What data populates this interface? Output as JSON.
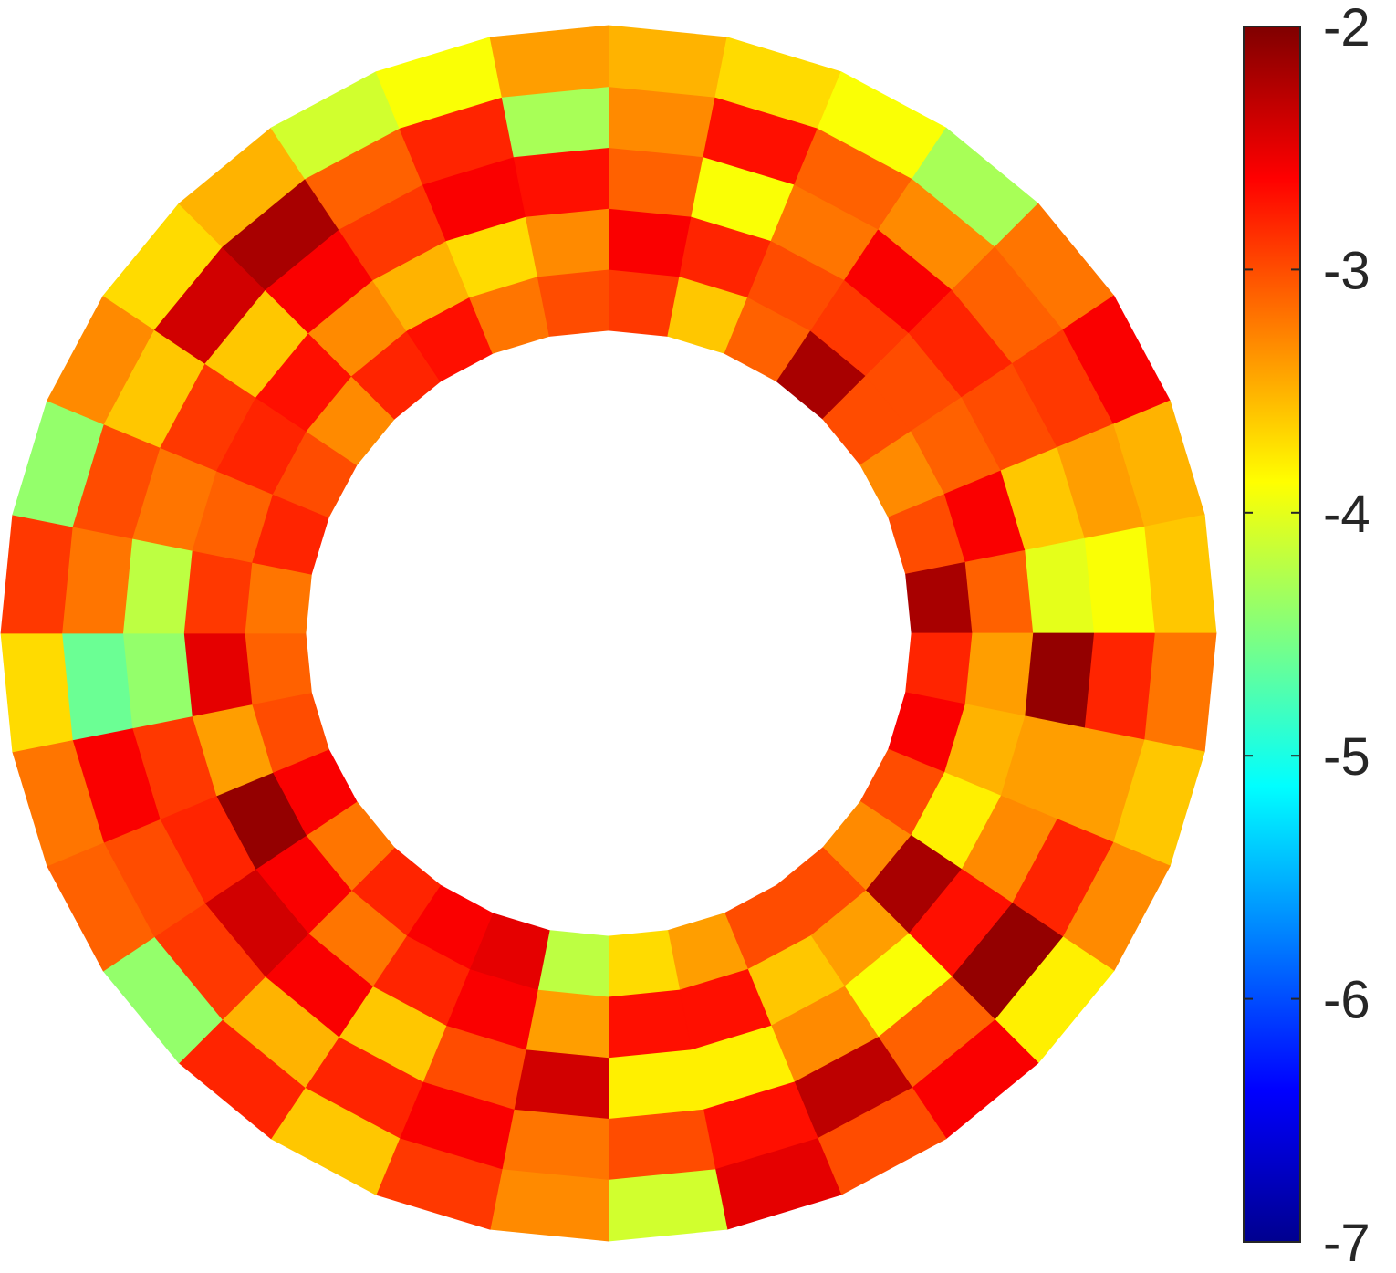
{
  "chart_data": {
    "type": "heatmap",
    "layout": "polar annulus",
    "title": "",
    "rings": 5,
    "sectors": 32,
    "colormap": "jet",
    "clim": [
      -7,
      -2
    ],
    "colorbar": {
      "position": "right",
      "ticks": [
        -2,
        -3,
        -4,
        -5,
        -6,
        -7
      ],
      "tick_labels": [
        "-2",
        "-3",
        "-4",
        "-5",
        "-6",
        "-7"
      ]
    },
    "values_by_ring": [
      [
        -2.9,
        -3.6,
        -3.1,
        -2.2,
        -3.0,
        -3.3,
        -3.0,
        -2.2,
        -2.8,
        -2.6,
        -3.0,
        -3.3,
        -3.0,
        -3.0,
        -3.4,
        -3.7,
        -4.2,
        -2.5,
        -2.6,
        -2.8,
        -3.2,
        -2.6,
        -3.0,
        -3.1,
        -3.2,
        -2.8,
        -3.0,
        -3.3,
        -2.8,
        -2.7,
        -3.2,
        -3.0
      ],
      [
        -2.6,
        -2.8,
        -3.0,
        -2.9,
        -3.0,
        -3.1,
        -2.6,
        -3.1,
        -3.4,
        -3.5,
        -3.8,
        -2.2,
        -3.4,
        -3.6,
        -2.7,
        -2.7,
        -3.4,
        -2.6,
        -2.8,
        -3.2,
        -2.6,
        -2.1,
        -3.4,
        -2.5,
        -2.9,
        -3.1,
        -2.8,
        -2.7,
        -3.3,
        -3.5,
        -3.7,
        -3.3
      ],
      [
        -3.1,
        -3.9,
        -3.2,
        -2.6,
        -2.8,
        -3.0,
        -3.6,
        -4.0,
        -2.1,
        -3.4,
        -3.3,
        -2.7,
        -3.9,
        -3.3,
        -3.8,
        -3.8,
        -2.4,
        -3.0,
        -3.6,
        -2.6,
        -2.4,
        -2.8,
        -2.9,
        -4.4,
        -4.2,
        -3.2,
        -2.9,
        -3.6,
        -2.6,
        -2.9,
        -2.6,
        -2.7
      ],
      [
        -3.3,
        -2.7,
        -3.1,
        -3.3,
        -3.1,
        -2.9,
        -3.4,
        -3.9,
        -2.8,
        -3.4,
        -2.8,
        -2.1,
        -3.1,
        -2.3,
        -2.7,
        -3.0,
        -3.2,
        -2.6,
        -2.8,
        -3.5,
        -2.9,
        -3.0,
        -2.6,
        -4.6,
        -3.2,
        -3.0,
        -3.6,
        -2.4,
        -2.2,
        -3.1,
        -2.8,
        -4.3
      ],
      [
        -3.5,
        -3.7,
        -3.9,
        -4.3,
        -3.2,
        -2.6,
        -3.5,
        -3.6,
        -3.2,
        -3.6,
        -3.3,
        -3.8,
        -2.6,
        -3.0,
        -2.5,
        -4.1,
        -3.3,
        -2.9,
        -3.6,
        -2.8,
        -4.4,
        -3.1,
        -3.2,
        -3.7,
        -2.9,
        -4.4,
        -3.3,
        -3.7,
        -3.5,
        -4.1,
        -3.9,
        -3.4
      ]
    ]
  }
}
